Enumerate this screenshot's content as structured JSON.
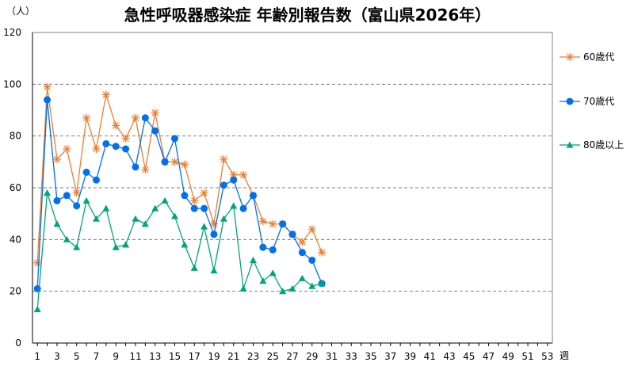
{
  "chart_data": {
    "type": "line",
    "title": "急性呼吸器感染症 年齢別報告数（富山県2026年）",
    "ylabel": "（人）",
    "xlabel": "週",
    "ylim": [
      0,
      120
    ],
    "xlim": [
      1,
      53
    ],
    "y_ticks": [
      0,
      20,
      40,
      60,
      80,
      100,
      120
    ],
    "x_ticks": [
      1,
      3,
      5,
      7,
      9,
      11,
      13,
      15,
      17,
      19,
      21,
      23,
      25,
      27,
      29,
      31,
      33,
      35,
      37,
      39,
      41,
      43,
      45,
      47,
      49,
      51,
      53
    ],
    "grid": "horizontal-dashed",
    "legend_position": "right",
    "series": [
      {
        "name": "60歳代",
        "color": "#ED7D31",
        "marker": "asterisk",
        "x": [
          1,
          2,
          3,
          4,
          5,
          6,
          7,
          8,
          9,
          10,
          11,
          12,
          13,
          14,
          15,
          16,
          17,
          18,
          19,
          20,
          21,
          22,
          23,
          24,
          25,
          26,
          27,
          28,
          29,
          30
        ],
        "values": [
          31,
          99,
          71,
          75,
          58,
          87,
          75,
          96,
          84,
          79,
          87,
          67,
          89,
          70,
          70,
          69,
          55,
          58,
          46,
          71,
          65,
          65,
          57,
          47,
          46,
          46,
          42,
          39,
          44,
          35
        ]
      },
      {
        "name": "70歳代",
        "color": "#0070F0",
        "marker": "circle",
        "x": [
          1,
          2,
          3,
          4,
          5,
          6,
          7,
          8,
          9,
          10,
          11,
          12,
          13,
          14,
          15,
          16,
          17,
          18,
          19,
          20,
          21,
          22,
          23,
          24,
          25,
          26,
          27,
          28,
          29,
          30
        ],
        "values": [
          21,
          94,
          55,
          57,
          53,
          66,
          63,
          77,
          76,
          75,
          68,
          87,
          82,
          70,
          79,
          57,
          52,
          52,
          42,
          61,
          63,
          52,
          57,
          37,
          36,
          46,
          42,
          35,
          32,
          23
        ]
      },
      {
        "name": "80歳以上",
        "color": "#00A578",
        "marker": "triangle",
        "x": [
          1,
          2,
          3,
          4,
          5,
          6,
          7,
          8,
          9,
          10,
          11,
          12,
          13,
          14,
          15,
          16,
          17,
          18,
          19,
          20,
          21,
          22,
          23,
          24,
          25,
          26,
          27,
          28,
          29,
          30
        ],
        "values": [
          13,
          58,
          46,
          40,
          37,
          55,
          48,
          52,
          37,
          38,
          48,
          46,
          52,
          55,
          49,
          38,
          29,
          45,
          28,
          48,
          53,
          21,
          32,
          24,
          27,
          20,
          21,
          25,
          22,
          23
        ]
      }
    ]
  }
}
